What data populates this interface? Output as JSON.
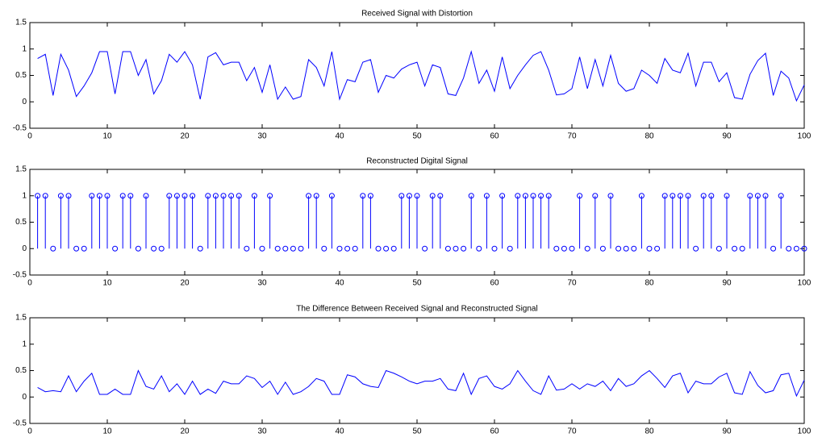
{
  "chart_data": [
    {
      "type": "line",
      "title": "Received Signal with Distortion",
      "color": "#0000ff",
      "x": [
        1,
        2,
        3,
        4,
        5,
        6,
        7,
        8,
        9,
        10,
        11,
        12,
        13,
        14,
        15,
        16,
        17,
        18,
        19,
        20,
        21,
        22,
        23,
        24,
        25,
        26,
        27,
        28,
        29,
        30,
        31,
        32,
        33,
        34,
        35,
        36,
        37,
        38,
        39,
        40,
        41,
        42,
        43,
        44,
        45,
        46,
        47,
        48,
        49,
        50,
        51,
        52,
        53,
        54,
        55,
        56,
        57,
        58,
        59,
        60,
        61,
        62,
        63,
        64,
        65,
        66,
        67,
        68,
        69,
        70,
        71,
        72,
        73,
        74,
        75,
        76,
        77,
        78,
        79,
        80,
        81,
        82,
        83,
        84,
        85,
        86,
        87,
        88,
        89,
        90,
        91,
        92,
        93,
        94,
        95,
        96,
        97,
        98,
        99,
        100
      ],
      "values": [
        0.82,
        0.9,
        0.12,
        0.9,
        0.6,
        0.1,
        0.3,
        0.55,
        0.95,
        0.95,
        0.15,
        0.95,
        0.95,
        0.5,
        0.8,
        0.15,
        0.4,
        0.9,
        0.75,
        0.95,
        0.7,
        0.05,
        0.85,
        0.93,
        0.7,
        0.75,
        0.75,
        0.4,
        0.65,
        0.18,
        0.7,
        0.05,
        0.28,
        0.05,
        0.1,
        0.8,
        0.65,
        0.3,
        0.95,
        0.05,
        0.42,
        0.38,
        0.75,
        0.8,
        0.18,
        0.5,
        0.45,
        0.62,
        0.7,
        0.75,
        0.3,
        0.7,
        0.65,
        0.15,
        0.12,
        0.45,
        0.95,
        0.35,
        0.6,
        0.2,
        0.85,
        0.25,
        0.5,
        0.7,
        0.88,
        0.95,
        0.6,
        0.13,
        0.15,
        0.25,
        0.85,
        0.25,
        0.8,
        0.3,
        0.88,
        0.35,
        0.2,
        0.25,
        0.6,
        0.5,
        0.35,
        0.82,
        0.6,
        0.55,
        0.92,
        0.3,
        0.75,
        0.75,
        0.38,
        0.55,
        0.08,
        0.05,
        0.52,
        0.78,
        0.92,
        0.12,
        0.58,
        0.45,
        0.02,
        0.32
      ],
      "xlim": [
        0,
        100
      ],
      "ylim": [
        -0.5,
        1.5
      ],
      "xticks": [
        0,
        10,
        20,
        30,
        40,
        50,
        60,
        70,
        80,
        90,
        100
      ],
      "yticks": [
        -0.5,
        0,
        0.5,
        1,
        1.5
      ]
    },
    {
      "type": "stem",
      "title": "Reconstructed Digital Signal",
      "color": "#0000ff",
      "x": [
        1,
        2,
        3,
        4,
        5,
        6,
        7,
        8,
        9,
        10,
        11,
        12,
        13,
        14,
        15,
        16,
        17,
        18,
        19,
        20,
        21,
        22,
        23,
        24,
        25,
        26,
        27,
        28,
        29,
        30,
        31,
        32,
        33,
        34,
        35,
        36,
        37,
        38,
        39,
        40,
        41,
        42,
        43,
        44,
        45,
        46,
        47,
        48,
        49,
        50,
        51,
        52,
        53,
        54,
        55,
        56,
        57,
        58,
        59,
        60,
        61,
        62,
        63,
        64,
        65,
        66,
        67,
        68,
        69,
        70,
        71,
        72,
        73,
        74,
        75,
        76,
        77,
        78,
        79,
        80,
        81,
        82,
        83,
        84,
        85,
        86,
        87,
        88,
        89,
        90,
        91,
        92,
        93,
        94,
        95,
        96,
        97,
        98,
        99,
        100
      ],
      "values": [
        1,
        1,
        0,
        1,
        1,
        0,
        0,
        1,
        1,
        1,
        0,
        1,
        1,
        0,
        1,
        0,
        0,
        1,
        1,
        1,
        1,
        0,
        1,
        1,
        1,
        1,
        1,
        0,
        1,
        0,
        1,
        0,
        0,
        0,
        0,
        1,
        1,
        0,
        1,
        0,
        0,
        0,
        1,
        1,
        0,
        0,
        0,
        1,
        1,
        1,
        0,
        1,
        1,
        0,
        0,
        0,
        1,
        0,
        1,
        0,
        1,
        0,
        1,
        1,
        1,
        1,
        1,
        0,
        0,
        0,
        1,
        0,
        1,
        0,
        1,
        0,
        0,
        0,
        1,
        0,
        0,
        1,
        1,
        1,
        1,
        0,
        1,
        1,
        0,
        1,
        0,
        0,
        1,
        1,
        1,
        0,
        1,
        0,
        0,
        0
      ],
      "xlim": [
        0,
        100
      ],
      "ylim": [
        -0.5,
        1.5
      ],
      "xticks": [
        0,
        10,
        20,
        30,
        40,
        50,
        60,
        70,
        80,
        90,
        100
      ],
      "yticks": [
        -0.5,
        0,
        0.5,
        1,
        1.5
      ]
    },
    {
      "type": "line",
      "title": "The Difference Between Received Signal and Reconstructed Signal",
      "color": "#0000ff",
      "x": [
        1,
        2,
        3,
        4,
        5,
        6,
        7,
        8,
        9,
        10,
        11,
        12,
        13,
        14,
        15,
        16,
        17,
        18,
        19,
        20,
        21,
        22,
        23,
        24,
        25,
        26,
        27,
        28,
        29,
        30,
        31,
        32,
        33,
        34,
        35,
        36,
        37,
        38,
        39,
        40,
        41,
        42,
        43,
        44,
        45,
        46,
        47,
        48,
        49,
        50,
        51,
        52,
        53,
        54,
        55,
        56,
        57,
        58,
        59,
        60,
        61,
        62,
        63,
        64,
        65,
        66,
        67,
        68,
        69,
        70,
        71,
        72,
        73,
        74,
        75,
        76,
        77,
        78,
        79,
        80,
        81,
        82,
        83,
        84,
        85,
        86,
        87,
        88,
        89,
        90,
        91,
        92,
        93,
        94,
        95,
        96,
        97,
        98,
        99,
        100
      ],
      "values": [
        0.18,
        0.1,
        0.12,
        0.1,
        0.4,
        0.1,
        0.3,
        0.45,
        0.05,
        0.05,
        0.15,
        0.05,
        0.05,
        0.5,
        0.2,
        0.15,
        0.4,
        0.1,
        0.25,
        0.05,
        0.3,
        0.05,
        0.15,
        0.07,
        0.3,
        0.25,
        0.25,
        0.4,
        0.35,
        0.18,
        0.3,
        0.05,
        0.28,
        0.05,
        0.1,
        0.2,
        0.35,
        0.3,
        0.05,
        0.05,
        0.42,
        0.38,
        0.25,
        0.2,
        0.18,
        0.5,
        0.45,
        0.38,
        0.3,
        0.25,
        0.3,
        0.3,
        0.35,
        0.15,
        0.12,
        0.45,
        0.05,
        0.35,
        0.4,
        0.2,
        0.15,
        0.25,
        0.5,
        0.3,
        0.12,
        0.05,
        0.4,
        0.13,
        0.15,
        0.25,
        0.15,
        0.25,
        0.2,
        0.3,
        0.12,
        0.35,
        0.2,
        0.25,
        0.4,
        0.5,
        0.35,
        0.18,
        0.4,
        0.45,
        0.08,
        0.3,
        0.25,
        0.25,
        0.38,
        0.45,
        0.08,
        0.05,
        0.48,
        0.22,
        0.08,
        0.12,
        0.42,
        0.45,
        0.02,
        0.32
      ],
      "xlim": [
        0,
        100
      ],
      "ylim": [
        -0.5,
        1.5
      ],
      "xticks": [
        0,
        10,
        20,
        30,
        40,
        50,
        60,
        70,
        80,
        90,
        100
      ],
      "yticks": [
        -0.5,
        0,
        0.5,
        1,
        1.5
      ]
    }
  ]
}
